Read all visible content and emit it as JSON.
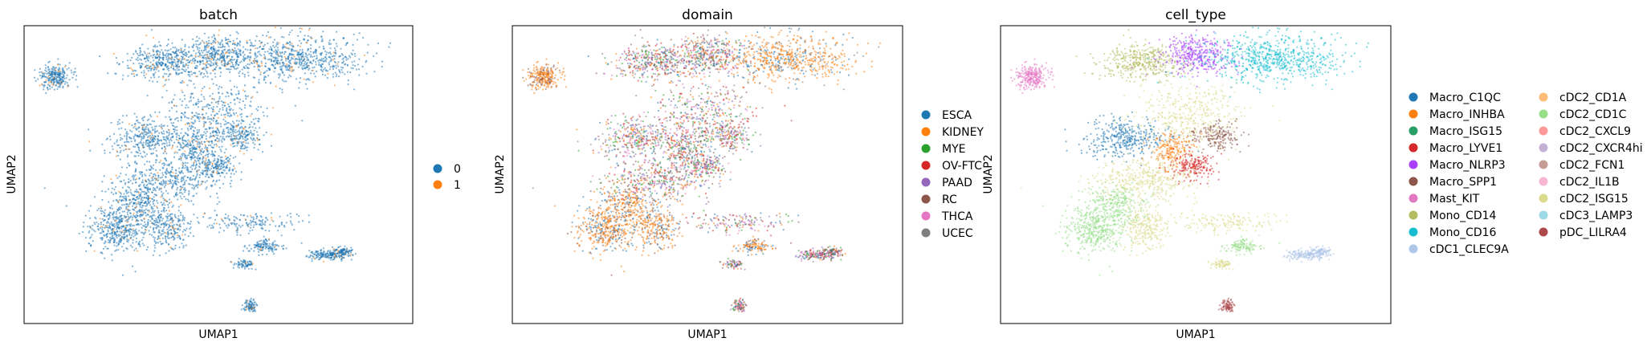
{
  "chart_data": [
    {
      "type": "scatter",
      "title": "batch",
      "xlabel": "UMAP1",
      "ylabel": "UMAP2",
      "grid": false,
      "ticks": false,
      "legend": {
        "placement": "right",
        "columns": 1,
        "entries": [
          {
            "label": "0",
            "color": "#1f77b4"
          },
          {
            "label": "1",
            "color": "#ff7f0e"
          }
        ]
      }
    },
    {
      "type": "scatter",
      "title": "domain",
      "xlabel": "UMAP1",
      "ylabel": "UMAP2",
      "grid": false,
      "ticks": false,
      "legend": {
        "placement": "right",
        "columns": 1,
        "entries": [
          {
            "label": "ESCA",
            "color": "#1f77b4"
          },
          {
            "label": "KIDNEY",
            "color": "#ff7f0e"
          },
          {
            "label": "MYE",
            "color": "#2ca02c"
          },
          {
            "label": "OV-FTC",
            "color": "#d62728"
          },
          {
            "label": "PAAD",
            "color": "#9467bd"
          },
          {
            "label": "RC",
            "color": "#8c564b"
          },
          {
            "label": "THCA",
            "color": "#e377c2"
          },
          {
            "label": "UCEC",
            "color": "#7f7f7f"
          }
        ]
      }
    },
    {
      "type": "scatter",
      "title": "cell_type",
      "xlabel": "UMAP1",
      "ylabel": "UMAP2",
      "grid": false,
      "ticks": false,
      "legend": {
        "placement": "right",
        "columns": 2,
        "entries": [
          {
            "label": "Macro_C1QC",
            "color": "#1f77b4"
          },
          {
            "label": "Macro_INHBA",
            "color": "#ff7f0e"
          },
          {
            "label": "Macro_ISG15",
            "color": "#279e68"
          },
          {
            "label": "Macro_LYVE1",
            "color": "#d62728"
          },
          {
            "label": "Macro_NLRP3",
            "color": "#aa40fc"
          },
          {
            "label": "Macro_SPP1",
            "color": "#8c564b"
          },
          {
            "label": "Mast_KIT",
            "color": "#e377c2"
          },
          {
            "label": "Mono_CD14",
            "color": "#b5bd61"
          },
          {
            "label": "Mono_CD16",
            "color": "#17becf"
          },
          {
            "label": "cDC1_CLEC9A",
            "color": "#aec7e8"
          },
          {
            "label": "cDC2_CD1A",
            "color": "#ffbb78"
          },
          {
            "label": "cDC2_CD1C",
            "color": "#98df8a"
          },
          {
            "label": "cDC2_CXCL9",
            "color": "#ff9896"
          },
          {
            "label": "cDC2_CXCR4hi",
            "color": "#c5b0d5"
          },
          {
            "label": "cDC2_FCN1",
            "color": "#c49c94"
          },
          {
            "label": "cDC2_IL1B",
            "color": "#f7b6d2"
          },
          {
            "label": "cDC2_ISG15",
            "color": "#dbdb8d"
          },
          {
            "label": "cDC3_LAMP3",
            "color": "#9edae5"
          },
          {
            "label": "pDC_LILRA4",
            "color": "#ad494a"
          }
        ]
      }
    }
  ]
}
